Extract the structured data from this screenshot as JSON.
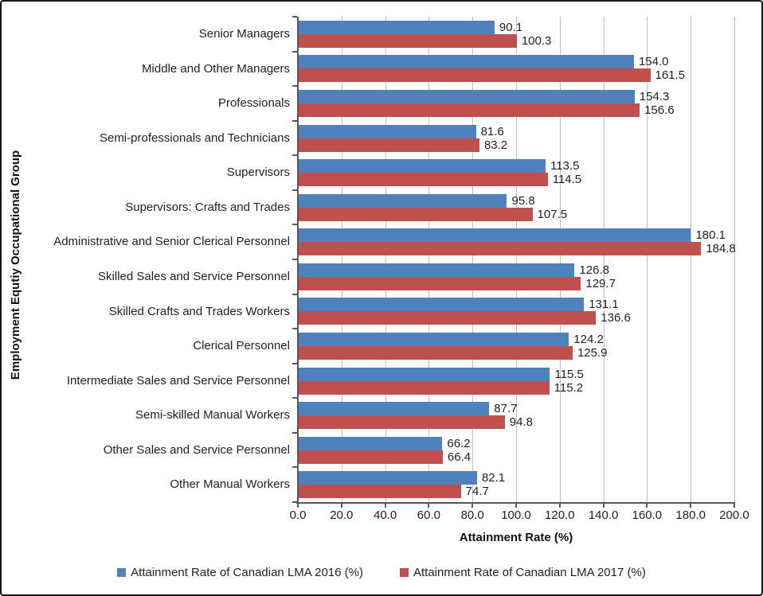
{
  "chart_data": {
    "type": "bar",
    "orientation": "horizontal",
    "title": "",
    "xlabel": "Attainment Rate (%)",
    "ylabel": "Employment Equtiy Occupational Group",
    "xlim": [
      0,
      200
    ],
    "xtick_step": 20,
    "xtick_labels": [
      "0.0",
      "20.0",
      "40.0",
      "60.0",
      "80.0",
      "100.0",
      "120.0",
      "140.0",
      "160.0",
      "180.0",
      "200.0"
    ],
    "grid": true,
    "value_labels": true,
    "legend_position": "bottom",
    "categories": [
      "Senior Managers",
      "Middle and Other Managers",
      "Professionals",
      "Semi-professionals and Technicians",
      "Supervisors",
      "Supervisors: Crafts and Trades",
      "Administrative and Senior Clerical Personnel",
      "Skilled Sales and Service Personnel",
      "Skilled Crafts and Trades Workers",
      "Clerical Personnel",
      "Intermediate Sales and Service Personnel",
      "Semi-skilled Manual Workers",
      "Other Sales and Service Personnel",
      "Other Manual Workers"
    ],
    "series": [
      {
        "name": "Attainment Rate of Canadian LMA 2016 (%)",
        "color": "#4f81bd",
        "values": [
          90.1,
          154.0,
          154.3,
          81.6,
          113.5,
          95.8,
          180.1,
          126.8,
          131.1,
          124.2,
          115.5,
          87.7,
          66.2,
          82.1
        ]
      },
      {
        "name": "Attainment Rate of Canadian LMA 2017 (%)",
        "color": "#c0504d",
        "values": [
          100.3,
          161.5,
          156.6,
          83.2,
          114.5,
          107.5,
          184.8,
          129.7,
          136.6,
          125.9,
          115.2,
          94.8,
          66.4,
          74.7
        ]
      }
    ],
    "colors": {
      "gridline": "#bfbfbf",
      "axis": "#595959",
      "text": "#1f1f1f",
      "frame_border": "#161616",
      "background": "#ffffff"
    }
  }
}
